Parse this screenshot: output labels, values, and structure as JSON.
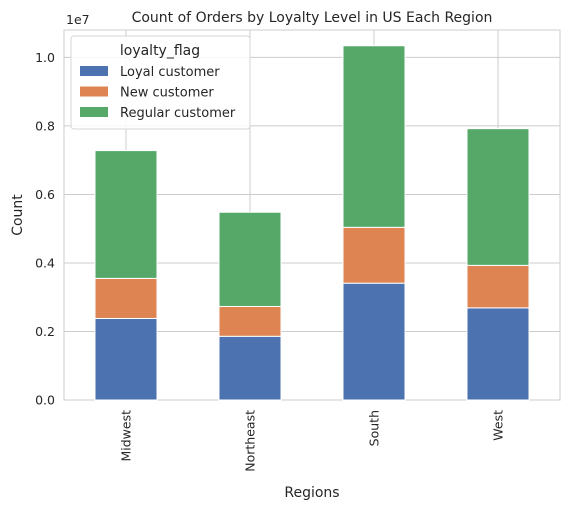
{
  "chart_data": {
    "type": "bar",
    "stacked": true,
    "title": "Count of Orders by Loyalty Level in US Each Region",
    "xlabel": "Regions",
    "ylabel": "Count",
    "scale_label": "1e7",
    "categories": [
      "Midwest",
      "Northeast",
      "South",
      "West"
    ],
    "yticks": [
      "0.0",
      "0.2",
      "0.4",
      "0.6",
      "0.8",
      "1.0"
    ],
    "ytick_values": [
      0,
      0.2,
      0.4,
      0.6,
      0.8,
      1.0
    ],
    "ylim": [
      0,
      1.08
    ],
    "grid": true,
    "legend_title": "loyalty_flag",
    "legend_position": "top-left",
    "series": [
      {
        "name": "Loyal customer",
        "color": "#4c72b0",
        "values": [
          0.238,
          0.186,
          0.341,
          0.269
        ]
      },
      {
        "name": "New customer",
        "color": "#dd8452",
        "values": [
          0.117,
          0.087,
          0.163,
          0.124
        ]
      },
      {
        "name": "Regular customer",
        "color": "#55a868",
        "values": [
          0.373,
          0.275,
          0.53,
          0.399
        ]
      }
    ]
  }
}
